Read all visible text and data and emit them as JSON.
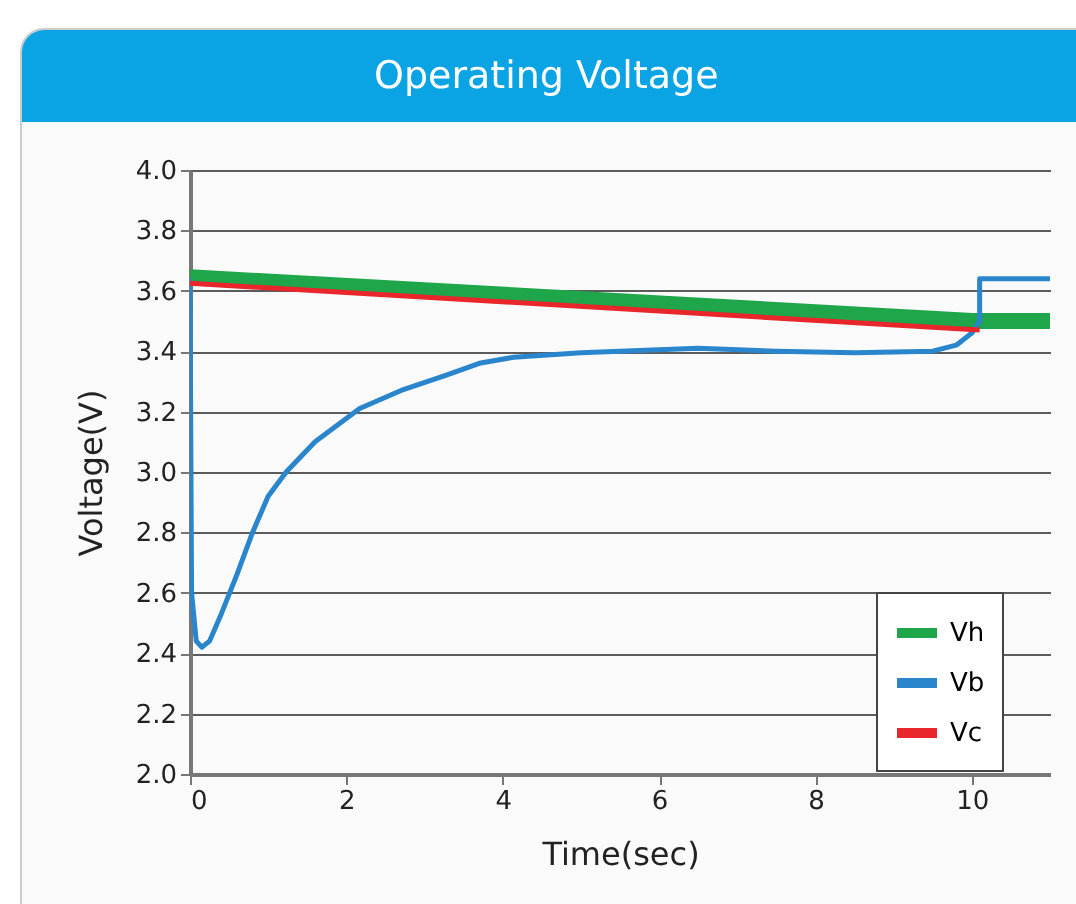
{
  "chart_data": {
    "type": "line",
    "title": "Operating Voltage",
    "xlabel": "Time(sec)",
    "ylabel": "Voltage(V)",
    "xlim": [
      0,
      11
    ],
    "xticks": [
      0,
      2,
      4,
      6,
      8,
      10
    ],
    "ylim": [
      2.0,
      4.0
    ],
    "yticks": [
      {
        "value": 2.0,
        "label": "2.0"
      },
      {
        "value": 2.2,
        "label": "2.2"
      },
      {
        "value": 2.4,
        "label": "2.4"
      },
      {
        "value": 2.6,
        "label": "2.6"
      },
      {
        "value": 2.8,
        "label": "2.8"
      },
      {
        "value": 3.0,
        "label": "3.0"
      },
      {
        "value": 3.2,
        "label": "3.2"
      },
      {
        "value": 3.4,
        "label": "3.4"
      },
      {
        "value": 3.6,
        "label": "3.6"
      },
      {
        "value": 3.8,
        "label": "3.8"
      },
      {
        "value": 4.0,
        "label": "4.0"
      }
    ],
    "grid": "y",
    "legend": "bottom right",
    "line_style": "solid",
    "series": [
      {
        "name": "Vh",
        "color": "#1fa64a",
        "x": [
          0,
          10,
          11
        ],
        "values": [
          3.645,
          3.5,
          3.5
        ]
      },
      {
        "name": "Vb",
        "color": "#2a86cc",
        "x": [
          0,
          0.02,
          0.08,
          0.15,
          0.25,
          0.4,
          0.6,
          0.8,
          1.0,
          1.23,
          1.6,
          2.17,
          2.7,
          3.27,
          3.7,
          4.14,
          5,
          6,
          6.5,
          7.5,
          8.5,
          9.5,
          9.8,
          10.0,
          10.1,
          10.1,
          10.5,
          11
        ],
        "values": [
          3.64,
          2.6,
          2.44,
          2.42,
          2.44,
          2.53,
          2.66,
          2.8,
          2.92,
          3.0,
          3.1,
          3.21,
          3.27,
          3.32,
          3.36,
          3.38,
          3.395,
          3.405,
          3.41,
          3.4,
          3.395,
          3.4,
          3.42,
          3.46,
          3.5,
          3.64,
          3.64,
          3.64
        ]
      },
      {
        "name": "Vc",
        "color": "#e8262b",
        "x": [
          0,
          10.1
        ],
        "values": [
          3.625,
          3.47
        ]
      }
    ]
  }
}
